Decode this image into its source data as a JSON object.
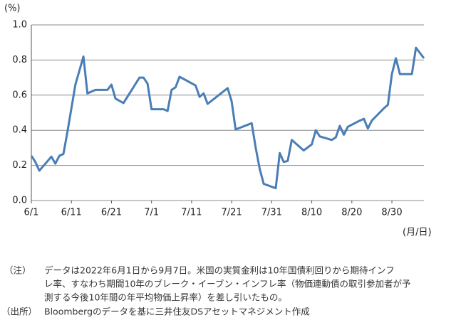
{
  "chart_data": {
    "type": "line",
    "y_unit": "(%)",
    "x_unit": "(月/日)",
    "x": [
      "6/1",
      "6/2",
      "6/3",
      "6/6",
      "6/7",
      "6/8",
      "6/9",
      "6/10",
      "6/12",
      "6/14",
      "6/15",
      "6/17",
      "6/20",
      "6/21",
      "6/22",
      "6/24",
      "6/28",
      "6/29",
      "6/30",
      "7/1",
      "7/4",
      "7/5",
      "7/6",
      "7/7",
      "7/8",
      "7/12",
      "7/13",
      "7/14",
      "7/15",
      "7/20",
      "7/21",
      "7/22",
      "7/26",
      "7/27",
      "7/28",
      "7/29",
      "8/1",
      "8/2",
      "8/3",
      "8/4",
      "8/5",
      "8/8",
      "8/10",
      "8/11",
      "8/12",
      "8/15",
      "8/16",
      "8/17",
      "8/18",
      "8/19",
      "8/22",
      "8/23",
      "8/24",
      "8/25",
      "8/28",
      "8/29",
      "8/30",
      "8/31",
      "9/1",
      "9/4",
      "9/5",
      "9/7"
    ],
    "series": [
      {
        "color": "#4a7db5",
        "values": [
          0.255,
          0.22,
          0.17,
          0.25,
          0.21,
          0.255,
          0.265,
          0.39,
          0.66,
          0.82,
          0.61,
          0.63,
          0.63,
          0.66,
          0.58,
          0.555,
          0.7,
          0.7,
          0.665,
          0.52,
          0.52,
          0.51,
          0.63,
          0.645,
          0.705,
          0.655,
          0.59,
          0.61,
          0.55,
          0.64,
          0.565,
          0.405,
          0.44,
          0.3,
          0.18,
          0.095,
          0.07,
          0.27,
          0.22,
          0.225,
          0.345,
          0.285,
          0.32,
          0.4,
          0.365,
          0.345,
          0.36,
          0.425,
          0.375,
          0.42,
          0.455,
          0.465,
          0.41,
          0.455,
          0.525,
          0.545,
          0.72,
          0.81,
          0.72,
          0.72,
          0.87,
          0.81
        ]
      }
    ],
    "xticks": [
      "6/1",
      "6/11",
      "6/21",
      "7/1",
      "7/11",
      "7/21",
      "7/31",
      "8/10",
      "8/20",
      "8/30"
    ],
    "ylim": [
      0,
      1
    ],
    "yticks": [
      {
        "value": 0,
        "label": "0.0"
      },
      {
        "value": 0.2,
        "label": "0.2"
      },
      {
        "value": 0.4,
        "label": "0.4"
      },
      {
        "value": 0.6,
        "label": "0.6"
      },
      {
        "value": 0.8,
        "label": "0.8"
      },
      {
        "value": 1,
        "label": "1.0"
      }
    ],
    "grid": true
  },
  "notes": [
    {
      "label": "（注）",
      "lines": [
        "データは2022年6月1日から9月7日。米国の実質金利は10年国債利回りから期待インフ",
        "レ率、すなわち期間10年のブレーク・イーブン・インフレ率（物価連動債の取引参加者が予",
        "測する今後10年間の年平均物価上昇率）を差し引いたもの。"
      ]
    },
    {
      "label": "（出所）",
      "lines": [
        "Bloombergのデータを基に三井住友DSアセットマネジメント作成"
      ]
    }
  ]
}
